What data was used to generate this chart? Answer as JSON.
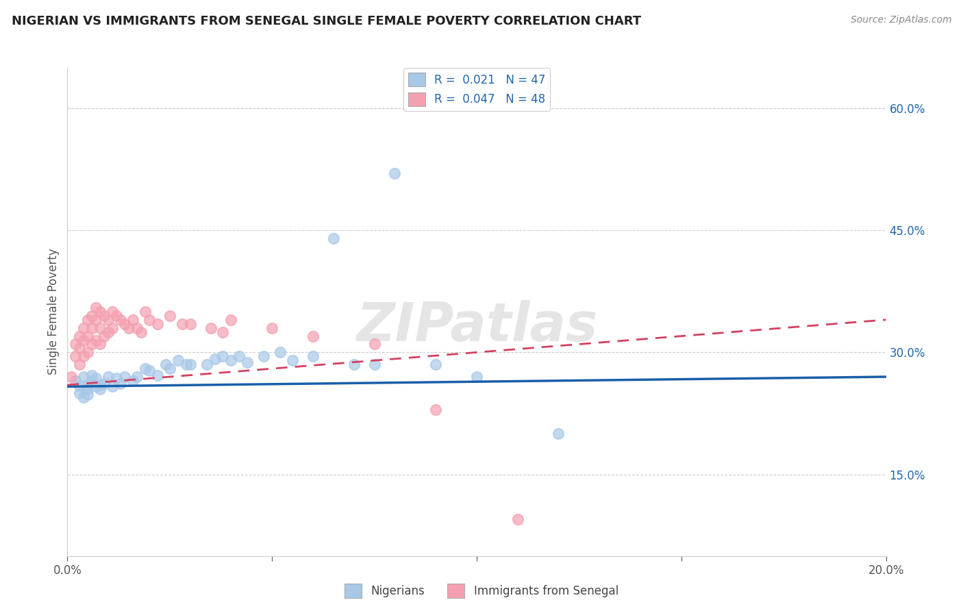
{
  "title": "NIGERIAN VS IMMIGRANTS FROM SENEGAL SINGLE FEMALE POVERTY CORRELATION CHART",
  "source": "Source: ZipAtlas.com",
  "ylabel": "Single Female Poverty",
  "xlim": [
    0.0,
    0.2
  ],
  "ylim": [
    0.05,
    0.65
  ],
  "right_yticks": [
    0.15,
    0.3,
    0.45,
    0.6
  ],
  "right_yticklabels": [
    "15.0%",
    "30.0%",
    "45.0%",
    "60.0%"
  ],
  "xticks": [
    0.0,
    0.05,
    0.1,
    0.15,
    0.2
  ],
  "xticklabels": [
    "0.0%",
    "",
    "",
    "",
    "20.0%"
  ],
  "watermark": "ZIPatlas",
  "legend_r1": "R =  0.021   N = 47",
  "legend_r2": "R =  0.047   N = 48",
  "blue_color": "#a8c8e8",
  "pink_color": "#f4a0b0",
  "blue_line_color": "#1a5fa8",
  "pink_line_color": "#d44060",
  "nigerians_x": [
    0.002,
    0.003,
    0.003,
    0.004,
    0.004,
    0.005,
    0.005,
    0.005,
    0.006,
    0.006,
    0.007,
    0.007,
    0.008,
    0.008,
    0.009,
    0.01,
    0.011,
    0.012,
    0.013,
    0.014,
    0.016,
    0.017,
    0.019,
    0.02,
    0.022,
    0.024,
    0.025,
    0.027,
    0.029,
    0.03,
    0.034,
    0.036,
    0.038,
    0.04,
    0.042,
    0.044,
    0.048,
    0.052,
    0.055,
    0.06,
    0.065,
    0.07,
    0.075,
    0.08,
    0.09,
    0.1,
    0.12
  ],
  "nigerians_y": [
    0.265,
    0.258,
    0.25,
    0.27,
    0.245,
    0.26,
    0.255,
    0.248,
    0.265,
    0.272,
    0.258,
    0.268,
    0.26,
    0.255,
    0.262,
    0.27,
    0.258,
    0.268,
    0.262,
    0.27,
    0.265,
    0.27,
    0.28,
    0.278,
    0.272,
    0.285,
    0.28,
    0.29,
    0.285,
    0.285,
    0.285,
    0.292,
    0.295,
    0.29,
    0.295,
    0.288,
    0.295,
    0.3,
    0.29,
    0.295,
    0.44,
    0.285,
    0.285,
    0.52,
    0.285,
    0.27,
    0.2
  ],
  "senegal_x": [
    0.001,
    0.002,
    0.002,
    0.003,
    0.003,
    0.003,
    0.004,
    0.004,
    0.004,
    0.005,
    0.005,
    0.005,
    0.006,
    0.006,
    0.006,
    0.007,
    0.007,
    0.007,
    0.008,
    0.008,
    0.008,
    0.009,
    0.009,
    0.01,
    0.01,
    0.011,
    0.011,
    0.012,
    0.013,
    0.014,
    0.015,
    0.016,
    0.017,
    0.018,
    0.019,
    0.02,
    0.022,
    0.025,
    0.028,
    0.03,
    0.035,
    0.038,
    0.04,
    0.05,
    0.06,
    0.075,
    0.09,
    0.11
  ],
  "senegal_y": [
    0.27,
    0.31,
    0.295,
    0.32,
    0.305,
    0.285,
    0.33,
    0.315,
    0.295,
    0.34,
    0.32,
    0.3,
    0.345,
    0.33,
    0.31,
    0.355,
    0.34,
    0.315,
    0.35,
    0.33,
    0.31,
    0.345,
    0.32,
    0.34,
    0.325,
    0.35,
    0.33,
    0.345,
    0.34,
    0.335,
    0.33,
    0.34,
    0.33,
    0.325,
    0.35,
    0.34,
    0.335,
    0.345,
    0.335,
    0.335,
    0.33,
    0.325,
    0.34,
    0.33,
    0.32,
    0.31,
    0.23,
    0.095
  ],
  "blue_trendline_x": [
    0.0,
    0.2
  ],
  "blue_trendline_y": [
    0.258,
    0.27
  ],
  "pink_trendline_x": [
    0.0,
    0.2
  ],
  "pink_trendline_y": [
    0.26,
    0.34
  ]
}
